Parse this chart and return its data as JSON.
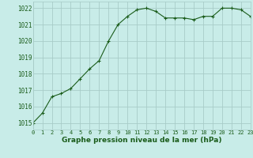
{
  "x": [
    0,
    1,
    2,
    3,
    4,
    5,
    6,
    7,
    8,
    9,
    10,
    11,
    12,
    13,
    14,
    15,
    16,
    17,
    18,
    19,
    20,
    21,
    22,
    23
  ],
  "y": [
    1015.0,
    1015.6,
    1016.6,
    1016.8,
    1017.1,
    1017.7,
    1018.3,
    1018.8,
    1020.0,
    1021.0,
    1021.5,
    1021.9,
    1022.0,
    1021.8,
    1021.4,
    1021.4,
    1021.4,
    1021.3,
    1021.5,
    1021.5,
    1022.0,
    1022.0,
    1021.9,
    1021.5
  ],
  "line_color": "#1a5c1a",
  "marker": "+",
  "bg_color": "#c8ece8",
  "grid_color": "#a8ccc8",
  "xlabel": "Graphe pression niveau de la mer (hPa)",
  "xlabel_color": "#1a5c1a",
  "ylabel_ticks": [
    1015,
    1016,
    1017,
    1018,
    1019,
    1020,
    1021,
    1022
  ],
  "xlim": [
    0,
    23
  ],
  "ylim": [
    1014.6,
    1022.4
  ],
  "tick_color": "#1a5c1a",
  "ytick_fontsize": 5.5,
  "xtick_fontsize": 5.0,
  "xlabel_fontsize": 6.5
}
